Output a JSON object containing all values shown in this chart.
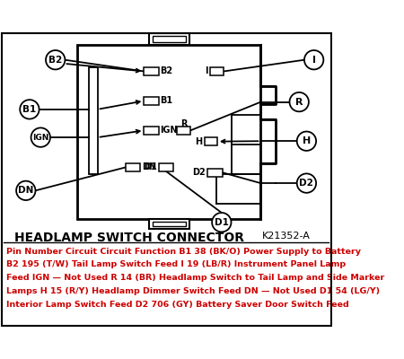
{
  "title": "HEADLAMP SWITCH CONNECTOR",
  "title_code": "K21352-A",
  "bg_color": "#ffffff",
  "description_lines": [
    "Pin Number Circuit Circuit Function B1 38 (BK/O) Power Supply to Battery",
    "B2 195 (T/W) Tail Lamp Switch Feed I 19 (LB/R) Instrument Panel Lamp",
    "Feed IGN — Not Used R 14 (BR) Headlamp Switch to Tail Lamp and Side Marker",
    "Lamps H 15 (R/Y) Headlamp Dimmer Switch Feed DN — Not Used D1 54 (LG/Y)",
    "Interior Lamp Switch Feed D2 706 (GY) Battery Saver Door Switch Feed"
  ],
  "text_color": "#cc0000"
}
